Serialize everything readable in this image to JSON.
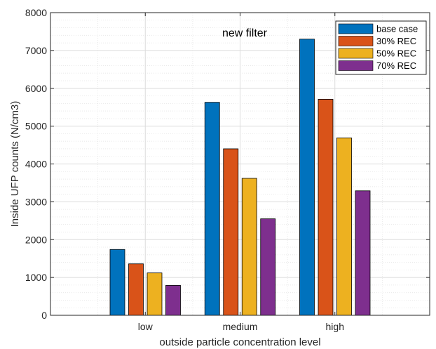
{
  "chart_data": {
    "type": "bar",
    "categories": [
      "low",
      "medium",
      "high"
    ],
    "series": [
      {
        "name": "base case",
        "color": "#0072BD",
        "values": [
          1740,
          5630,
          7300
        ]
      },
      {
        "name": "30% REC",
        "color": "#D95319",
        "values": [
          1360,
          4400,
          5710
        ]
      },
      {
        "name": "50% REC",
        "color": "#EDB120",
        "values": [
          1120,
          3620,
          4690
        ]
      },
      {
        "name": "70% REC",
        "color": "#7E2F8E",
        "values": [
          790,
          2550,
          3290
        ]
      }
    ],
    "annotation": "new filter",
    "xlabel": "outside particle concentration level",
    "ylabel": "Inside UFP counts (N/cm3)",
    "ylim": [
      0,
      8000
    ],
    "yticks": [
      0,
      1000,
      2000,
      3000,
      4000,
      5000,
      6000,
      7000,
      8000
    ],
    "grid": true,
    "minor_grid": true,
    "legend_position": "top-right"
  }
}
